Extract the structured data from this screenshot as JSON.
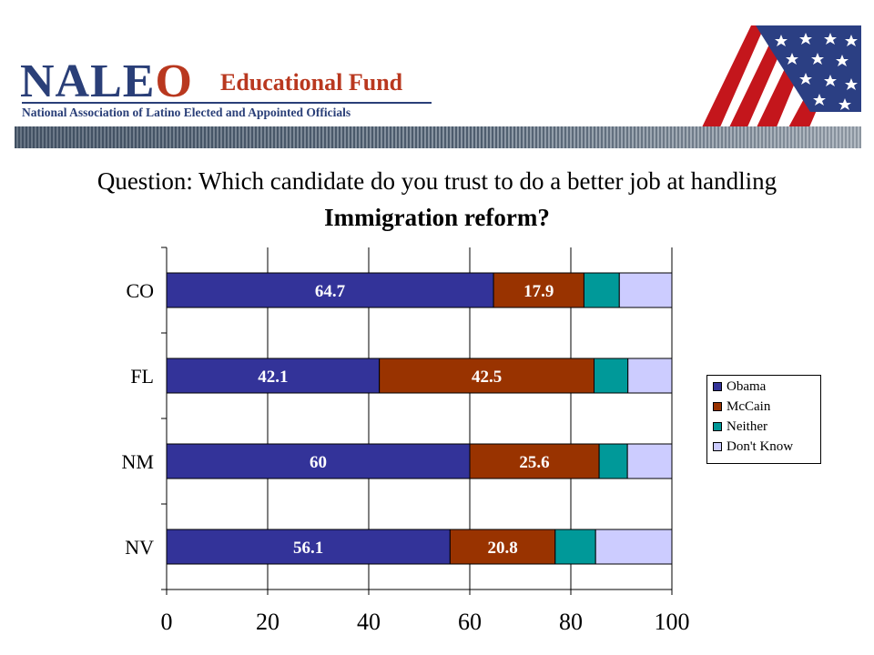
{
  "header": {
    "logo_text_part1": "NALE",
    "logo_text_part2": "O",
    "logo_subtitle": "Educational Fund",
    "logo_tagline": "National Association of Latino Elected and Appointed Officials"
  },
  "question": {
    "line1": "Question: Which candidate do you trust to do a better job at handling",
    "line2": "Immigration reform?"
  },
  "colors": {
    "Obama": "#333399",
    "McCain": "#993300",
    "Neither": "#009999",
    "Don't Know": "#ccccff",
    "brand_navy": "#2a3f78",
    "brand_red": "#b9381f"
  },
  "chart_data": {
    "type": "bar",
    "orientation": "horizontal",
    "stacked": true,
    "categories": [
      "CO",
      "FL",
      "NM",
      "NV"
    ],
    "series": [
      {
        "name": "Obama",
        "values": [
          64.7,
          42.1,
          60,
          56.1
        ]
      },
      {
        "name": "McCain",
        "values": [
          17.9,
          42.5,
          25.6,
          20.8
        ]
      },
      {
        "name": "Neither",
        "values": [
          7,
          6.7,
          5.6,
          8
        ]
      },
      {
        "name": "Don't Know",
        "values": [
          10.4,
          8.7,
          8.8,
          15.1
        ]
      }
    ],
    "data_labels": {
      "Obama": [
        "64.7",
        "42.1",
        "60",
        "56.1"
      ],
      "McCain": [
        "17.9",
        "42.5",
        "25.6",
        "20.8"
      ]
    },
    "xlim": [
      0,
      100
    ],
    "xticks": [
      "0",
      "20",
      "40",
      "60",
      "80",
      "100"
    ],
    "grid": "vertical",
    "legend": "right",
    "title": "",
    "xlabel": "",
    "ylabel": ""
  }
}
